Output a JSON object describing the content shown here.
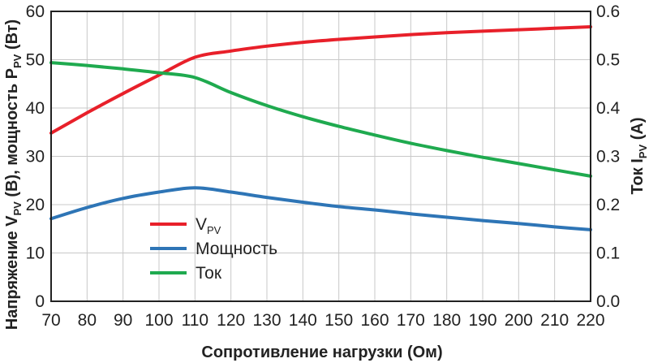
{
  "chart_data": {
    "type": "line",
    "x": [
      70,
      80,
      90,
      100,
      110,
      120,
      130,
      140,
      150,
      160,
      170,
      180,
      190,
      200,
      210,
      220
    ],
    "x_ticks": [
      "70",
      "80",
      "90",
      "100",
      "110",
      "120",
      "130",
      "140",
      "150",
      "160",
      "170",
      "180",
      "190",
      "200",
      "210",
      "220"
    ],
    "xlim": [
      70,
      220
    ],
    "xlabel": "Сопротивление нагрузки (Ом)",
    "y_left": {
      "label_parts": [
        "Напряжение V",
        "PV",
        " (В), мощность P",
        "PV",
        " (Вт)"
      ],
      "ylim": [
        0,
        60
      ],
      "ticks": [
        "0",
        "10",
        "20",
        "30",
        "40",
        "50",
        "60"
      ]
    },
    "y_right": {
      "label_parts": [
        "Ток I",
        "PV",
        " (А)"
      ],
      "ylim": [
        0,
        0.6
      ],
      "ticks": [
        "0.0",
        "0.1",
        "0.2",
        "0.3",
        "0.4",
        "0.5",
        "0.6"
      ]
    },
    "grid": true,
    "legend_position": "lower-left",
    "series": [
      {
        "name": "V",
        "name_sub": "PV",
        "color": "#e8202a",
        "axis": "left",
        "values": [
          34.8,
          39.0,
          43.0,
          46.8,
          50.5,
          51.8,
          52.8,
          53.6,
          54.2,
          54.7,
          55.2,
          55.6,
          55.9,
          56.2,
          56.5,
          56.8
        ]
      },
      {
        "name": "Мощность",
        "color": "#2e75b6",
        "axis": "left",
        "values": [
          17.1,
          19.4,
          21.3,
          22.6,
          23.5,
          22.6,
          21.5,
          20.5,
          19.6,
          18.9,
          18.1,
          17.4,
          16.7,
          16.1,
          15.4,
          14.8
        ]
      },
      {
        "name": "Ток",
        "color": "#1faa4f",
        "axis": "right",
        "values": [
          0.494,
          0.488,
          0.481,
          0.473,
          0.463,
          0.432,
          0.405,
          0.382,
          0.362,
          0.344,
          0.327,
          0.312,
          0.298,
          0.285,
          0.272,
          0.259
        ]
      }
    ]
  }
}
